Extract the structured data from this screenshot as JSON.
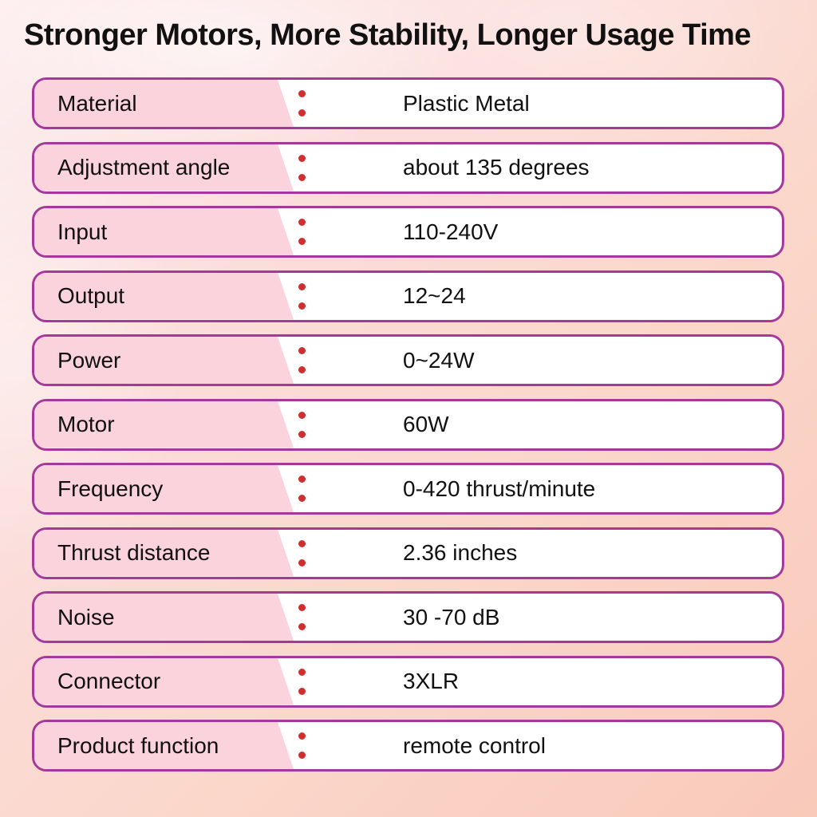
{
  "title": "Stronger Motors, More Stability, Longer Usage Time",
  "specs": [
    {
      "label": "Material",
      "value": "Plastic Metal"
    },
    {
      "label": "Adjustment angle",
      "value": "about 135 degrees"
    },
    {
      "label": "Input",
      "value": "110-240V"
    },
    {
      "label": "Output",
      "value": "12~24"
    },
    {
      "label": "Power",
      "value": "0~24W"
    },
    {
      "label": "Motor",
      "value": "60W"
    },
    {
      "label": "Frequency",
      "value": "0-420 thrust/minute"
    },
    {
      "label": "Thrust distance",
      "value": "2.36 inches"
    },
    {
      "label": "Noise",
      "value": "30 -70 dB"
    },
    {
      "label": "Connector",
      "value": "3XLR"
    },
    {
      "label": "Product function",
      "value": "remote control"
    }
  ],
  "colors": {
    "row_border": "#a5399a",
    "label_bg": "#fbd3dd",
    "dot": "#cf2f2f",
    "text": "#111111",
    "bg_top_left": "#fdf0f1",
    "bg_bottom_right": "#f9c9ba"
  }
}
